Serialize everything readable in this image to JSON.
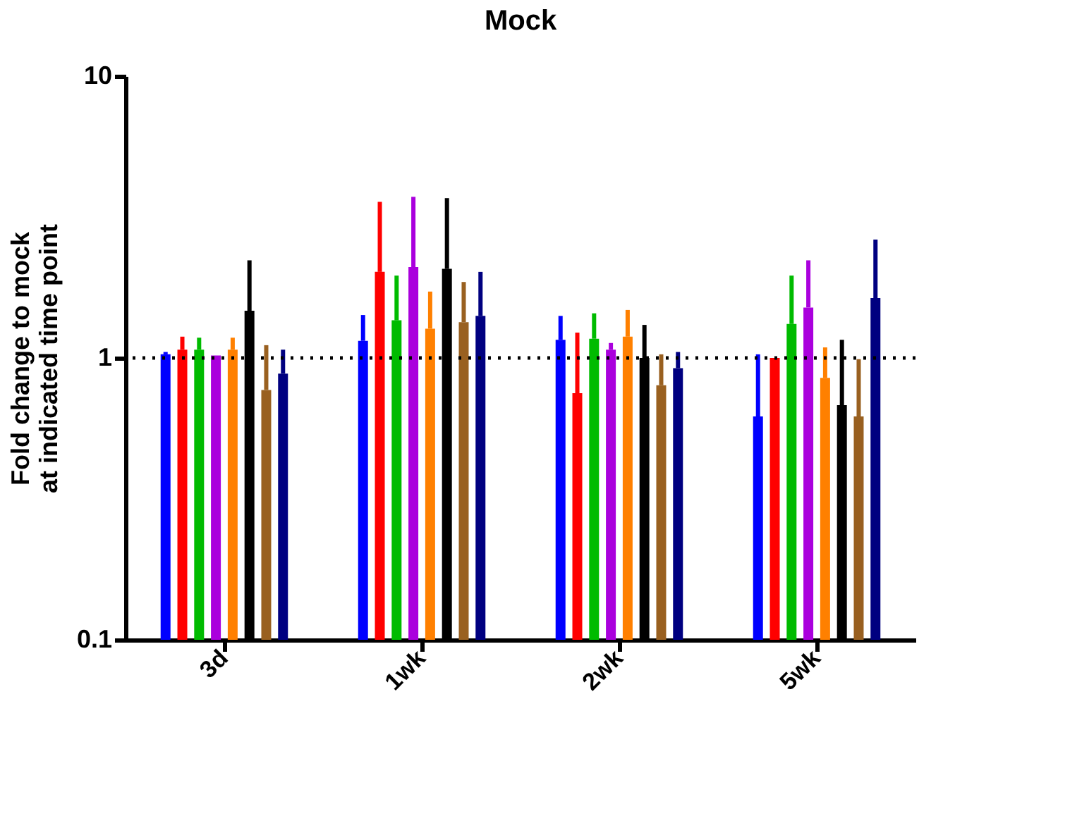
{
  "chart_data": {
    "type": "bar",
    "title": "Mock",
    "ylabel": "Fold change to mock at indicated time point",
    "categories": [
      "3d",
      "1wk",
      "2wk",
      "5wk"
    ],
    "series": [
      {
        "color": "#0000ff",
        "values": [
          1.03,
          1.15,
          1.16,
          0.62
        ],
        "errors": [
          [
            1.03,
            1.05
          ],
          [
            1.15,
            1.42
          ],
          [
            1.16,
            1.41
          ],
          [
            0.62,
            1.03
          ]
        ]
      },
      {
        "color": "#ff0000",
        "values": [
          1.07,
          2.02,
          0.75,
          1.0
        ],
        "errors": [
          [
            1.07,
            1.19
          ],
          [
            2.02,
            3.58
          ],
          [
            0.75,
            1.23
          ],
          null
        ]
      },
      {
        "color": "#00bb00",
        "values": [
          1.07,
          1.36,
          1.17,
          1.32
        ],
        "errors": [
          [
            1.07,
            1.18
          ],
          [
            1.36,
            1.96
          ],
          [
            1.17,
            1.44
          ],
          [
            1.32,
            1.96
          ]
        ]
      },
      {
        "color": "#aa00dd",
        "values": [
          1.02,
          2.1,
          1.07,
          1.51
        ],
        "errors": [
          null,
          [
            2.1,
            3.73
          ],
          [
            1.07,
            1.13
          ],
          [
            1.51,
            2.22
          ]
        ]
      },
      {
        "color": "#ff8000",
        "values": [
          1.07,
          1.27,
          1.19,
          0.85
        ],
        "errors": [
          [
            1.07,
            1.18
          ],
          [
            1.27,
            1.72
          ],
          [
            1.19,
            1.48
          ],
          [
            0.85,
            1.09
          ]
        ]
      },
      {
        "color": "#000000",
        "values": [
          1.47,
          2.07,
          1.0,
          0.68
        ],
        "errors": [
          [
            1.47,
            2.22
          ],
          [
            2.07,
            3.69
          ],
          [
            1.0,
            1.31
          ],
          [
            0.68,
            1.16
          ]
        ]
      },
      {
        "color": "#996020",
        "values": [
          0.77,
          1.34,
          0.8,
          0.62
        ],
        "errors": [
          [
            0.77,
            1.11
          ],
          [
            1.34,
            1.86
          ],
          [
            0.8,
            1.03
          ],
          [
            0.62,
            0.99
          ]
        ]
      },
      {
        "color": "#000080",
        "values": [
          0.88,
          1.41,
          0.92,
          1.63
        ],
        "errors": [
          [
            0.88,
            1.07
          ],
          [
            1.41,
            2.02
          ],
          [
            0.92,
            1.05
          ],
          [
            1.63,
            2.63
          ]
        ]
      }
    ],
    "log": true,
    "ylim": [
      0.1,
      10
    ],
    "yticks": [
      0.1,
      1,
      10
    ],
    "grid": false,
    "legend": false,
    "ref_lines": [
      {
        "axis": "y",
        "value": 1,
        "line_style": "dotted",
        "color": "#000000"
      }
    ]
  }
}
